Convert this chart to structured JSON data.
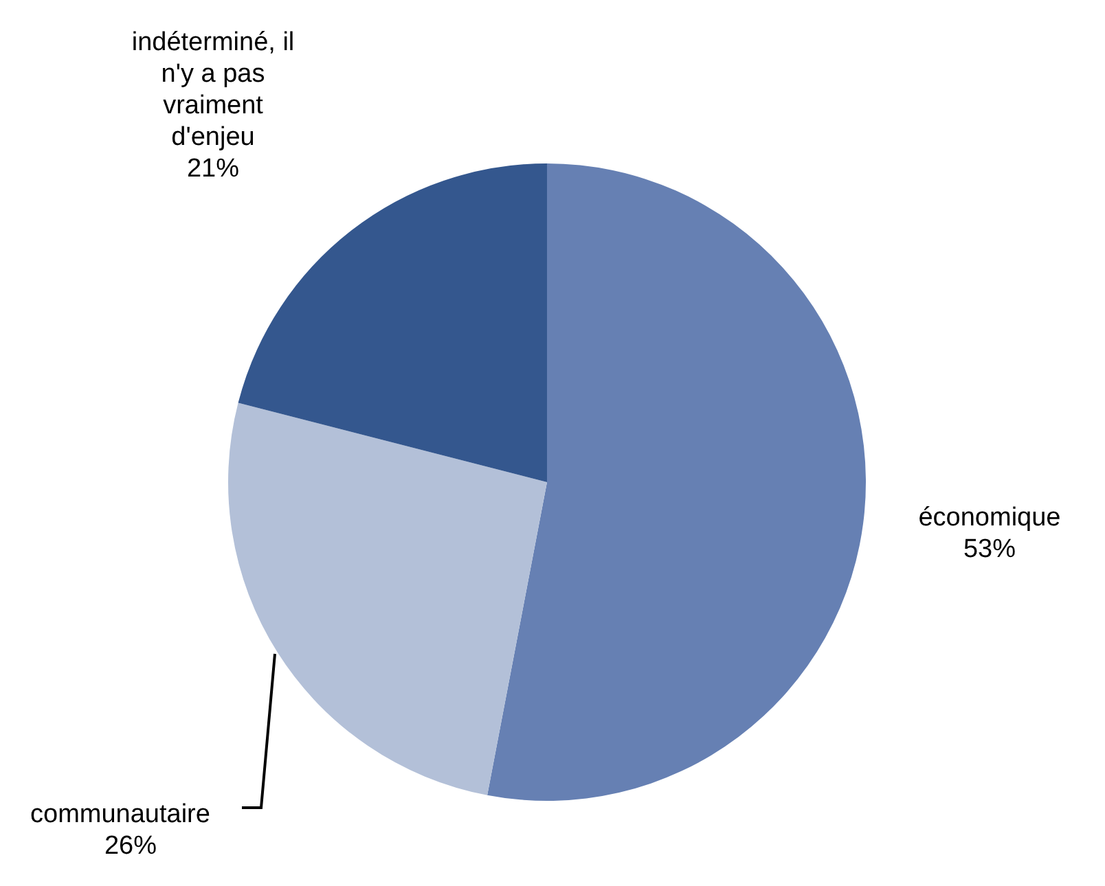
{
  "chart_data": {
    "type": "pie",
    "categories": [
      "économique",
      "communautaire",
      "indéterminé, il n'y a pas vraiment d'enjeu"
    ],
    "values": [
      53,
      26,
      21
    ],
    "colors": [
      "#6680b3",
      "#b3c0d8",
      "#34578e"
    ],
    "value_labels": [
      "53%",
      "26%",
      "21%"
    ],
    "legend": false
  }
}
